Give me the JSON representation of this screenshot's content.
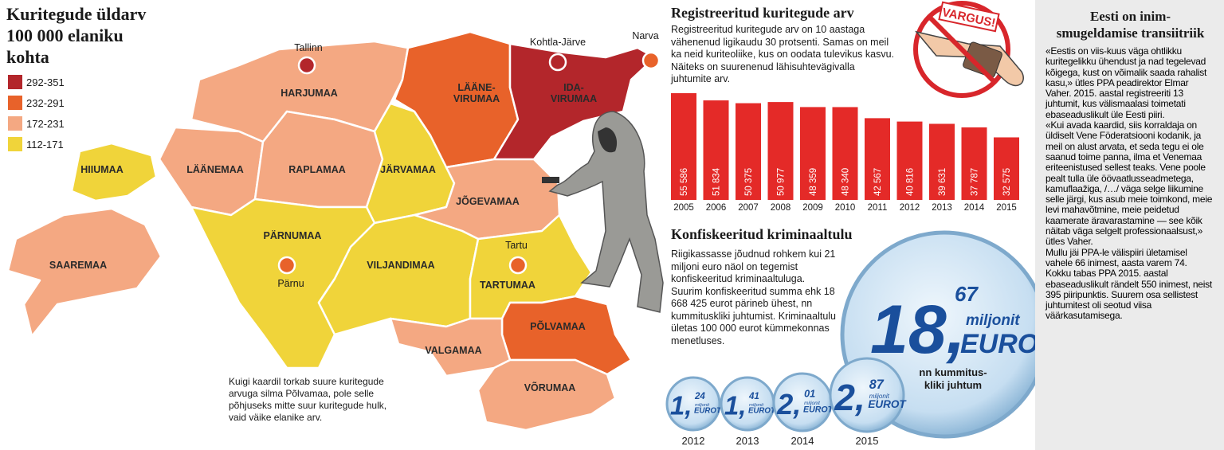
{
  "map": {
    "title": "Kuritegude üldarv 100 000 elaniku kohta",
    "legend": [
      {
        "label": "292-351",
        "color": "#b3262b"
      },
      {
        "label": "232-291",
        "color": "#e8622a"
      },
      {
        "label": "172-231",
        "color": "#f4a882"
      },
      {
        "label": "112-171",
        "color": "#f0d43a"
      }
    ],
    "regions": [
      {
        "name": "HARJUMAA",
        "level": 2
      },
      {
        "name": "LÄÄNE-VIRUMAA",
        "level": 1
      },
      {
        "name": "IDA-VIRUMAA",
        "level": 0
      },
      {
        "name": "LÄÄNEMAA",
        "level": 2
      },
      {
        "name": "RAPLAMAA",
        "level": 2
      },
      {
        "name": "JÄRVAMAA",
        "level": 3
      },
      {
        "name": "JÕGEVAMAA",
        "level": 2
      },
      {
        "name": "PÄRNUMAA",
        "level": 3
      },
      {
        "name": "VILJANDIMAA",
        "level": 3
      },
      {
        "name": "TARTUMAA",
        "level": 3
      },
      {
        "name": "PÕLVAMAA",
        "level": 1
      },
      {
        "name": "VALGAMAA",
        "level": 2
      },
      {
        "name": "VÕRUMAA",
        "level": 2
      },
      {
        "name": "SAAREMAA",
        "level": 2
      },
      {
        "name": "HIIUMAA",
        "level": 3
      }
    ],
    "cities": [
      "Tallinn",
      "Kohtla-Järve",
      "Narva",
      "Pärnu",
      "Tartu"
    ],
    "caption": "Kuigi kaardil torkab suure kuritegude arvuga silma Põlvamaa, pole selle põhjuseks mitte suur kuritegude hulk, vaid väike elanike arv."
  },
  "chart_data": {
    "type": "bar",
    "title": "Registreeritud kuritegude arv",
    "subtitle": "Registreeritud kuritegude arv on 10 aastaga vähenenud ligikaudu 30 protsenti. Samas on meil ka neid kuriteoliike, kus on oodata tulevikus kasvu. Näiteks on suurenenud lähisuhtevägivalla juhtumite arv.",
    "categories": [
      "2005",
      "2006",
      "2007",
      "2008",
      "2009",
      "2010",
      "2011",
      "2012",
      "2013",
      "2014",
      "2015"
    ],
    "values": [
      55586,
      51834,
      50375,
      50977,
      48359,
      48340,
      42567,
      40816,
      39631,
      37787,
      32575
    ],
    "value_labels": [
      "55 586",
      "51 834",
      "50 375",
      "50 977",
      "48 359",
      "48 340",
      "42 567",
      "40 816",
      "39 631",
      "37 787",
      "32 575"
    ],
    "color": "#e42a28"
  },
  "icon": {
    "label": "VARGUS!"
  },
  "confiscation": {
    "title": "Konfiskeeritud kriminaaltulu",
    "text": "Riigikassasse jõudnud rohkem kui 21 miljoni euro näol on tegemist konfiskeeritud kriminaaltuluga. Suurim konfiskeeritud summa ehk 18 668 425 eurot pärineb ühest, nn kummituskliki juhtumist. Kriminaaltulu ületas 100 000 eurot kümmekonnas menetluses.",
    "total": {
      "whole": "18,",
      "fraction": "67",
      "unit": "miljonit",
      "currency": "EUROT",
      "caption": "nn kummitus-kliki juhtum"
    },
    "coins": [
      {
        "year": "2012",
        "whole": "1,",
        "fraction": "24",
        "unit": "miljonit",
        "currency": "EUROT"
      },
      {
        "year": "2013",
        "whole": "1,",
        "fraction": "41",
        "unit": "miljonit",
        "currency": "EUROT"
      },
      {
        "year": "2014",
        "whole": "2,",
        "fraction": "01",
        "unit": "miljonit",
        "currency": "EUROT"
      },
      {
        "year": "2015",
        "whole": "2,",
        "fraction": "87",
        "unit": "miljonit",
        "currency": "EUROT"
      }
    ]
  },
  "sidebar": {
    "title": "Eesti on inim-smugeldamise transiitriik",
    "paragraphs": [
      "«Eestis on viis-kuus väga ohtlikku kuritegelikku ühendust ja nad tegelevad kõigega, kust on võimalik saada rahalist kasu,» ütles PPA peadirektor Elmar Vaher. 2015. aastal registreeriti 13 juhtumit, kus välismaalasi toimetati ebaseaduslikult üle Eesti piiri.",
      "«Kui avada kaardid, siis korraldaja on üldiselt Vene Föderatsiooni kodanik, ja meil on alust arvata, et seda tegu ei ole saanud toime panna, ilma et Venemaa eriteenistused sellest teaks. Vene poole pealt tulla üle öövaatlusseadmetega, kamuflaažiga, /…/ väga selge liikumine selle järgi, kus asub meie toimkond, meie levi mahavõtmine, meie peidetud kaamerate äravarastamine — see kõik näitab väga selgelt professionaalsust,» ütles Vaher.",
      "Mullu jäi PPA-le välispiiri ületamisel vahele 66 inimest, aasta varem 74.",
      "Kokku tabas PPA 2015. aastal ebaseaduslikult rändelt 550 inimest, neist 395 piiripunktis. Suurem osa sellistest juhtumitest oli seotud viisa väärkasutamisega."
    ]
  }
}
